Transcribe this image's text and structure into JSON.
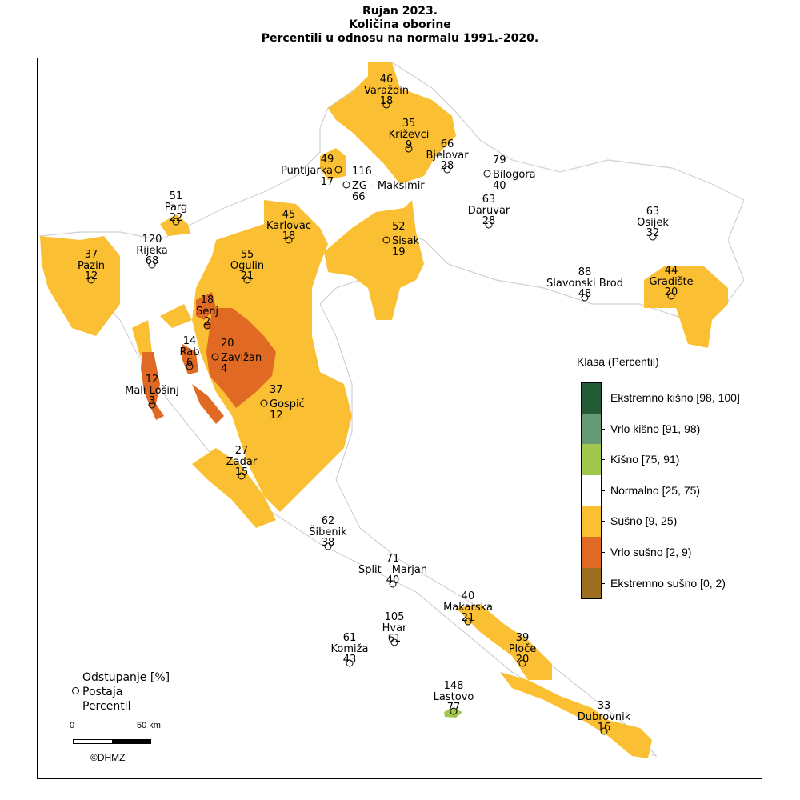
{
  "title": {
    "line1": "Rujan 2023.",
    "line2": "Količina oborine",
    "line3": "Percentili u odnosu na normalu 1991.-2020."
  },
  "legend": {
    "title": "Klasa (Percentil)",
    "classes": [
      {
        "label": "Ekstremno kišno [98, 100]",
        "color": "#245a37"
      },
      {
        "label": "Vrlo kišno [91, 98)",
        "color": "#659a72"
      },
      {
        "label": "Kišno [75, 91)",
        "color": "#a1c64e"
      },
      {
        "label": "Normalno [25, 75)",
        "color": "#ffffff"
      },
      {
        "label": "Sušno [9, 25)",
        "color": "#fbbf33"
      },
      {
        "label": "Vrlo sušno [2, 9)",
        "color": "#e06a24"
      },
      {
        "label": "Ekstremno sušno [0, 2)",
        "color": "#9a7020"
      }
    ]
  },
  "key": {
    "line1": "Odstupanje [%]",
    "line2": "Postaja",
    "line3": "Percentil",
    "scale_start": "0",
    "scale_end": "50 km",
    "copyright": "©DHMZ"
  },
  "stations": [
    {
      "name": "Varaždin",
      "deviation": "46",
      "percentile": "18"
    },
    {
      "name": "Križevci",
      "deviation": "35",
      "percentile": "9"
    },
    {
      "name": "Bjelovar",
      "deviation": "66",
      "percentile": "28"
    },
    {
      "name": "Bilogora",
      "deviation": "79",
      "percentile": "40"
    },
    {
      "name": "Puntijarka",
      "deviation": "49",
      "percentile": "17"
    },
    {
      "name": "ZG - Maksimir",
      "deviation": "116",
      "percentile": "66"
    },
    {
      "name": "Parg",
      "deviation": "51",
      "percentile": "22"
    },
    {
      "name": "Rijeka",
      "deviation": "120",
      "percentile": "68"
    },
    {
      "name": "Pazin",
      "deviation": "37",
      "percentile": "12"
    },
    {
      "name": "Karlovac",
      "deviation": "45",
      "percentile": "18"
    },
    {
      "name": "Ogulin",
      "deviation": "55",
      "percentile": "21"
    },
    {
      "name": "Sisak",
      "deviation": "52",
      "percentile": "19"
    },
    {
      "name": "Daruvar",
      "deviation": "63",
      "percentile": "28"
    },
    {
      "name": "Osijek",
      "deviation": "63",
      "percentile": "32"
    },
    {
      "name": "Slavonski Brod",
      "deviation": "88",
      "percentile": "48"
    },
    {
      "name": "Gradište",
      "deviation": "44",
      "percentile": "20"
    },
    {
      "name": "Senj",
      "deviation": "18",
      "percentile": "2"
    },
    {
      "name": "Rab",
      "deviation": "14",
      "percentile": "6"
    },
    {
      "name": "Zavižan",
      "deviation": "20",
      "percentile": "4"
    },
    {
      "name": "Mali Lošinj",
      "deviation": "12",
      "percentile": "3"
    },
    {
      "name": "Gospić",
      "deviation": "37",
      "percentile": "12"
    },
    {
      "name": "Zadar",
      "deviation": "27",
      "percentile": "15"
    },
    {
      "name": "Šibenik",
      "deviation": "62",
      "percentile": "38"
    },
    {
      "name": "Split - Marjan",
      "deviation": "71",
      "percentile": "40"
    },
    {
      "name": "Makarska",
      "deviation": "40",
      "percentile": "21"
    },
    {
      "name": "Hvar",
      "deviation": "105",
      "percentile": "61"
    },
    {
      "name": "Komiža",
      "deviation": "61",
      "percentile": "43"
    },
    {
      "name": "Ploče",
      "deviation": "39",
      "percentile": "20"
    },
    {
      "name": "Lastovo",
      "deviation": "148",
      "percentile": "77"
    },
    {
      "name": "Dubrovnik",
      "deviation": "33",
      "percentile": "16"
    }
  ]
}
